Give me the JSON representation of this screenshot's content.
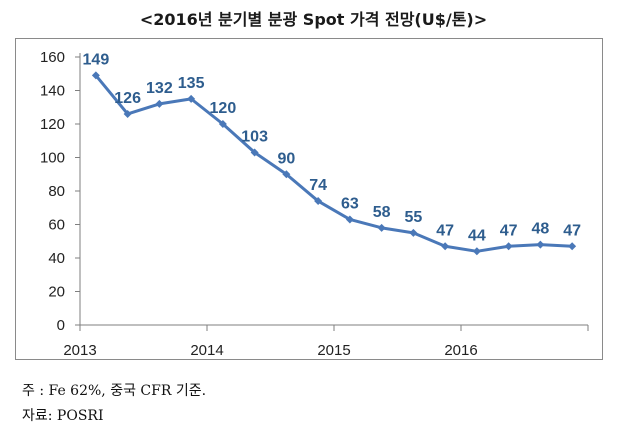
{
  "title": "<2016년 분기별 분광 Spot 가격 전망(U$/톤)>",
  "chart_data": {
    "type": "line",
    "title": "<2016년 분기별 분광 Spot 가격 전망(U$/톤)>",
    "xlabel": "",
    "ylabel": "",
    "ylim": [
      0,
      160
    ],
    "yticks": [
      0,
      20,
      40,
      60,
      80,
      100,
      120,
      140,
      160
    ],
    "year_labels": [
      "2013",
      "2014",
      "2015",
      "2016"
    ],
    "grid": false,
    "legend": "none",
    "series": [
      {
        "values": [
          149,
          126,
          132,
          135,
          120,
          103,
          90,
          74,
          63,
          58,
          55,
          47,
          44,
          47,
          48,
          47
        ],
        "color": "#4a78b8"
      }
    ],
    "label_color": "#2e5d8e"
  },
  "notes": {
    "note": "주 : Fe 62%, 중국 CFR 기준.",
    "source": "자료: POSRI"
  }
}
